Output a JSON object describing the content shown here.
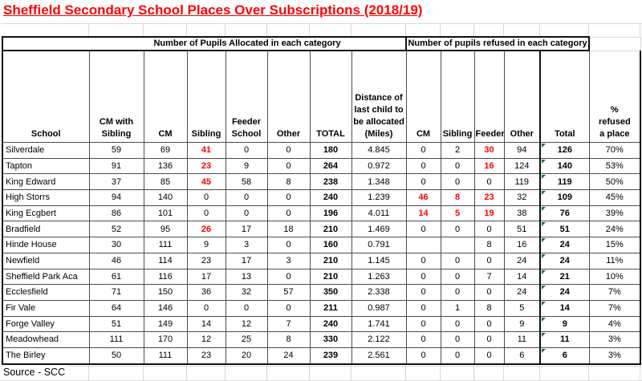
{
  "title": "Sheffield Secondary School Places Over Subscriptions (2018/19)",
  "source_note": "Source - SCC",
  "colors": {
    "title_red": "#ff0000",
    "highlight_value_red": "#ff0000",
    "error_indicator_green": "#217328",
    "gridline_light": "#d9d9d9",
    "border_thin": "#4d4d4d",
    "border_thick": "#101010",
    "text": "#000000",
    "background": "#ffffff"
  },
  "table": {
    "group_headers": {
      "allocated": "Number of Pupils Allocated in each category",
      "refused": "Number of pupils refused in each category"
    },
    "columns": {
      "school": "School",
      "allocated": [
        "CM with Sibling",
        "CM",
        "Sibling",
        "Feeder School",
        "Other",
        "TOTAL"
      ],
      "distance": "Distance of last child to be allocated (Miles)",
      "refused": [
        "CM",
        "Sibling",
        "Feeder",
        "Other",
        "Total"
      ],
      "pct": "% refused a place"
    },
    "rows": [
      {
        "school": "Silverdale",
        "allocated": [
          "59",
          "69",
          "41",
          "0",
          "0",
          "180"
        ],
        "allocated_red": [
          2
        ],
        "distance": "4.845",
        "refused": [
          "0",
          "2",
          "30",
          "94",
          "126"
        ],
        "refused_red": [
          2
        ],
        "pct": "70%"
      },
      {
        "school": "Tapton",
        "allocated": [
          "91",
          "136",
          "23",
          "9",
          "0",
          "264"
        ],
        "allocated_red": [
          2
        ],
        "distance": "0.972",
        "refused": [
          "0",
          "0",
          "16",
          "124",
          "140"
        ],
        "refused_red": [
          2
        ],
        "pct": "53%"
      },
      {
        "school": "King Edward",
        "allocated": [
          "37",
          "85",
          "45",
          "58",
          "8",
          "238"
        ],
        "allocated_red": [
          2
        ],
        "distance": "1.348",
        "refused": [
          "0",
          "0",
          "0",
          "119",
          "119"
        ],
        "refused_red": [],
        "pct": "50%"
      },
      {
        "school": "High Storrs",
        "allocated": [
          "94",
          "140",
          "0",
          "0",
          "0",
          "240"
        ],
        "allocated_red": [],
        "distance": "1.239",
        "refused": [
          "46",
          "8",
          "23",
          "32",
          "109"
        ],
        "refused_red": [
          0,
          1,
          2
        ],
        "pct": "45%"
      },
      {
        "school": "King Ecgbert",
        "allocated": [
          "86",
          "101",
          "0",
          "0",
          "0",
          "196"
        ],
        "allocated_red": [],
        "distance": "4.011",
        "refused": [
          "14",
          "5",
          "19",
          "38",
          "76"
        ],
        "refused_red": [
          0,
          1,
          2
        ],
        "pct": "39%"
      },
      {
        "school": "Bradfield",
        "allocated": [
          "52",
          "95",
          "26",
          "17",
          "18",
          "210"
        ],
        "allocated_red": [
          2
        ],
        "distance": "1.469",
        "refused": [
          "0",
          "0",
          "0",
          "51",
          "51"
        ],
        "refused_red": [],
        "pct": "24%"
      },
      {
        "school": "Hinde House",
        "allocated": [
          "30",
          "111",
          "9",
          "3",
          "0",
          "160"
        ],
        "allocated_red": [],
        "distance": "0.791",
        "refused": [
          "",
          "",
          "8",
          "16",
          "24"
        ],
        "refused_red": [],
        "pct": "15%"
      },
      {
        "school": "Newfield",
        "allocated": [
          "46",
          "114",
          "23",
          "17",
          "3",
          "210"
        ],
        "allocated_red": [],
        "distance": "1.145",
        "refused": [
          "0",
          "0",
          "0",
          "24",
          "24"
        ],
        "refused_red": [],
        "pct": "11%"
      },
      {
        "school": "Sheffield Park Aca",
        "allocated": [
          "61",
          "116",
          "17",
          "13",
          "0",
          "210"
        ],
        "allocated_red": [],
        "distance": "1.263",
        "refused": [
          "0",
          "0",
          "7",
          "14",
          "21"
        ],
        "refused_red": [],
        "pct": "10%"
      },
      {
        "school": "Ecclesfield",
        "allocated": [
          "71",
          "150",
          "36",
          "32",
          "57",
          "350"
        ],
        "allocated_red": [],
        "distance": "2.338",
        "refused": [
          "0",
          "0",
          "0",
          "24",
          "24"
        ],
        "refused_red": [],
        "pct": "7%"
      },
      {
        "school": "Fir Vale",
        "allocated": [
          "64",
          "146",
          "0",
          "0",
          "0",
          "211"
        ],
        "allocated_red": [],
        "distance": "0.987",
        "refused": [
          "0",
          "1",
          "8",
          "5",
          "14"
        ],
        "refused_red": [],
        "pct": "7%"
      },
      {
        "school": "Forge Valley",
        "allocated": [
          "51",
          "149",
          "14",
          "12",
          "7",
          "240"
        ],
        "allocated_red": [],
        "distance": "1.741",
        "refused": [
          "0",
          "0",
          "0",
          "9",
          "9"
        ],
        "refused_red": [],
        "pct": "4%"
      },
      {
        "school": "Meadowhead",
        "allocated": [
          "111",
          "170",
          "12",
          "25",
          "8",
          "330"
        ],
        "allocated_red": [],
        "distance": "2.122",
        "refused": [
          "0",
          "0",
          "0",
          "11",
          "11"
        ],
        "refused_red": [],
        "pct": "3%"
      },
      {
        "school": "The Birley",
        "allocated": [
          "50",
          "111",
          "23",
          "20",
          "24",
          "239"
        ],
        "allocated_red": [],
        "distance": "2.561",
        "refused": [
          "0",
          "0",
          "0",
          "6",
          "6"
        ],
        "refused_red": [],
        "pct": "3%"
      }
    ]
  }
}
